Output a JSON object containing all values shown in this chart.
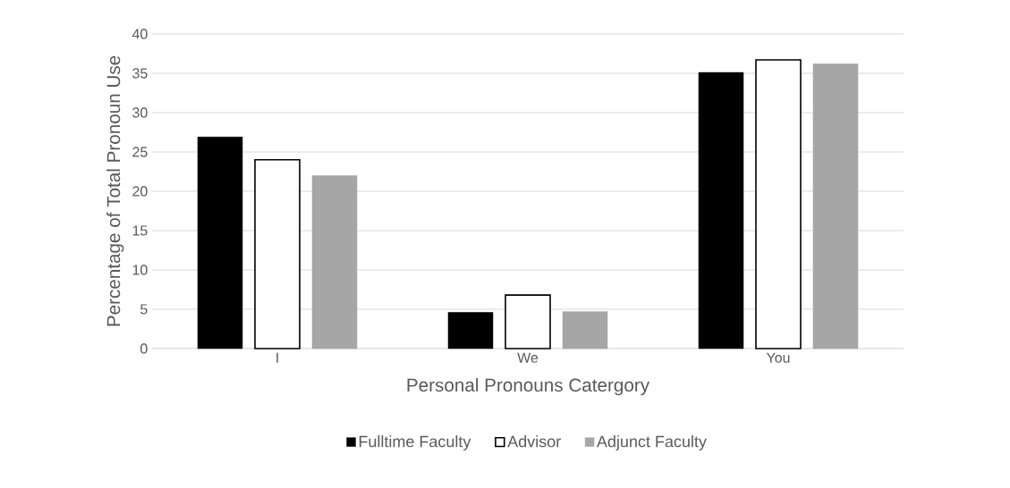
{
  "chart_data": {
    "type": "bar",
    "xlabel": "Personal Pronouns Catergory",
    "ylabel": "Percentage of Total Pronoun Use",
    "categories": [
      "I",
      "We",
      "You"
    ],
    "series": [
      {
        "name": "Fulltime Faculty",
        "color": "#000000",
        "values": [
          26.9,
          4.6,
          35.1
        ]
      },
      {
        "name": "Advisor",
        "color": "#ffffff",
        "values": [
          24.0,
          6.8,
          36.7
        ]
      },
      {
        "name": "Adjunct Faculty",
        "color": "#a6a6a6",
        "values": [
          22.0,
          4.7,
          36.2
        ]
      }
    ],
    "ylim": [
      0,
      40
    ],
    "yticks": [
      0,
      5,
      10,
      15,
      20,
      25,
      30,
      35,
      40
    ],
    "grid": "y",
    "legend": "bottom"
  }
}
